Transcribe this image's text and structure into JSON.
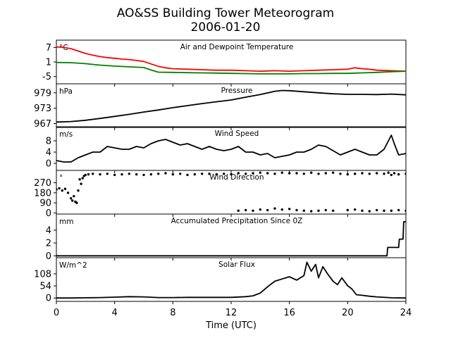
{
  "title": "AO&SS Building Tower Meteorogram",
  "subtitle": "2006-01-20",
  "chart_data": {
    "type": "line",
    "xlabel": "Time (UTC)",
    "xlim": [
      0,
      24
    ],
    "xticks": [
      0,
      4,
      8,
      12,
      16,
      20,
      24
    ],
    "panels": [
      {
        "key": "temp",
        "title": "Air and Dewpoint Temperature",
        "unit": "°C",
        "ylim": [
          -8,
          10
        ],
        "yticks": [
          7,
          1,
          -5
        ],
        "series": [
          {
            "name": "",
            "color": "#ff0000",
            "style": "line",
            "x": [
              0,
              0.5,
              1,
              1.5,
              2,
              2.5,
              3,
              3.5,
              4,
              4.5,
              5,
              5.5,
              6,
              6.5,
              7,
              7.5,
              8,
              9,
              10,
              11,
              12,
              13,
              14,
              15,
              16,
              17,
              18,
              19,
              20,
              20.5,
              21,
              21.5,
              22,
              23,
              24
            ],
            "y": [
              7.2,
              7.0,
              6.5,
              5.5,
              4.5,
              3.8,
              3.2,
              2.8,
              2.5,
              2.2,
              2.0,
              1.6,
              1.2,
              0.2,
              -0.8,
              -1.4,
              -1.8,
              -2.0,
              -2.2,
              -2.4,
              -2.4,
              -2.6,
              -2.8,
              -2.6,
              -2.8,
              -2.6,
              -2.4,
              -2.2,
              -2.0,
              -1.4,
              -1.8,
              -2.0,
              -2.4,
              -2.6,
              -2.8
            ]
          },
          {
            "name": "",
            "color": "#008000",
            "style": "line",
            "x": [
              0,
              1,
              2,
              3,
              4,
              5,
              6,
              6.5,
              7,
              8,
              9,
              10,
              11,
              12,
              13,
              14,
              15,
              16,
              17,
              18,
              19,
              20,
              21,
              22,
              23,
              24
            ],
            "y": [
              0.8,
              0.7,
              0.3,
              -0.3,
              -0.7,
              -1.0,
              -1.3,
              -2.3,
              -3.2,
              -3.3,
              -3.4,
              -3.5,
              -3.6,
              -3.7,
              -3.8,
              -3.9,
              -3.9,
              -3.9,
              -3.8,
              -3.8,
              -3.7,
              -3.7,
              -3.5,
              -3.3,
              -3.0,
              -2.8
            ]
          }
        ]
      },
      {
        "key": "pressure",
        "title": "Pressure",
        "unit": "hPa",
        "ylim": [
          965.5,
          982.5
        ],
        "yticks": [
          979,
          973,
          967
        ],
        "series": [
          {
            "name": "",
            "color": "#000000",
            "style": "line",
            "x": [
              0,
              1,
              2,
              3,
              4,
              5,
              6,
              7,
              8,
              9,
              10,
              11,
              12,
              13,
              14,
              15,
              15.5,
              16,
              17,
              18,
              19,
              20,
              21,
              22,
              23,
              24
            ],
            "y": [
              967.6,
              967.8,
              968.3,
              969.0,
              969.8,
              970.6,
              971.5,
              972.3,
              973.2,
              974.0,
              974.8,
              975.5,
              976.2,
              977.3,
              978.3,
              979.6,
              979.9,
              979.8,
              979.4,
              979.0,
              978.6,
              978.4,
              978.4,
              978.3,
              978.5,
              978.2
            ]
          }
        ]
      },
      {
        "key": "wind_speed",
        "title": "Wind Speed",
        "unit": "m/s",
        "ylim": [
          -2.5,
          13
        ],
        "yticks": [
          8,
          4,
          0
        ],
        "series": [
          {
            "name": "",
            "color": "#000000",
            "style": "line",
            "x": [
              0,
              0.5,
              1,
              1.5,
              2,
              2.5,
              3,
              3.5,
              4,
              4.5,
              5,
              5.5,
              6,
              6.5,
              7,
              7.5,
              8,
              8.5,
              9,
              9.5,
              10,
              10.5,
              11,
              11.5,
              12,
              12.5,
              13,
              13.5,
              14,
              14.5,
              15,
              15.5,
              16,
              16.5,
              17,
              17.5,
              18,
              18.5,
              19,
              19.5,
              20,
              20.5,
              21,
              21.5,
              22,
              22.5,
              23,
              23.2,
              23.5,
              24
            ],
            "y": [
              1,
              0.5,
              0.5,
              2,
              3,
              4,
              4,
              6,
              5.5,
              5,
              5,
              6,
              5.5,
              7,
              8,
              8.5,
              7.5,
              6.5,
              7,
              6,
              5,
              6,
              5,
              4.5,
              5,
              6,
              4,
              4,
              3,
              3.5,
              2,
              2.5,
              3,
              4,
              4,
              5,
              6.5,
              6,
              4.5,
              3,
              4,
              5,
              4,
              3,
              3,
              5,
              10,
              7,
              3,
              3.5
            ]
          }
        ]
      },
      {
        "key": "wind_dir",
        "title": "Wind Direction",
        "unit": "°",
        "ylim": [
          -10,
          380
        ],
        "yticks": [
          270,
          180,
          90,
          0
        ],
        "series": [
          {
            "name": "",
            "color": "#000000",
            "style": "dots",
            "x": [
              0,
              0.2,
              0.4,
              0.6,
              0.8,
              1.0,
              1.1,
              1.2,
              1.3,
              1.4,
              1.5,
              1.6,
              1.7,
              1.8,
              1.9,
              2.0,
              2.2,
              2.5,
              3,
              3.5,
              4,
              4.5,
              5,
              5.5,
              6,
              6.5,
              7,
              7.5,
              8,
              8.5,
              9,
              9.5,
              10,
              10.5,
              11,
              11.5,
              12,
              12.5,
              13,
              13.5,
              14,
              14.5,
              15,
              15.5,
              16,
              16.5,
              17,
              17.5,
              18,
              18.5,
              19,
              19.5,
              20,
              20.5,
              21,
              21.5,
              22,
              22.5,
              23,
              23.5,
              24,
              12.5,
              13,
              13.5,
              14,
              14.5,
              15,
              15.5,
              16,
              16.5,
              17,
              17.5,
              18,
              18.5,
              19,
              20,
              20.5,
              21,
              21.5,
              22,
              22.5,
              23,
              23.5,
              24,
              20.5,
              22.8,
              23.2
            ],
            "y": [
              210,
              220,
              200,
              215,
              180,
              130,
              110,
              150,
              100,
              90,
              200,
              300,
              260,
              310,
              330,
              340,
              345,
              350,
              345,
              350,
              340,
              345,
              350,
              345,
              340,
              345,
              350,
              355,
              345,
              350,
              340,
              345,
              350,
              350,
              345,
              350,
              345,
              355,
              350,
              355,
              360,
              355,
              350,
              360,
              355,
              355,
              350,
              360,
              350,
              355,
              360,
              350,
              345,
              350,
              355,
              350,
              355,
              350,
              340,
              345,
              350,
              20,
              25,
              20,
              30,
              25,
              40,
              30,
              35,
              25,
              20,
              15,
              20,
              25,
              20,
              25,
              30,
              20,
              15,
              25,
              20,
              20,
              25,
              20,
              350,
              360,
              355
            ]
          }
        ]
      },
      {
        "key": "precip",
        "title": "Accumulated Precipitation Since 0Z",
        "unit": "mm",
        "ylim": [
          -0.3,
          6.5
        ],
        "yticks": [
          4,
          2,
          0
        ],
        "series": [
          {
            "name": "",
            "color": "#000000",
            "style": "line",
            "x": [
              0,
              22.7,
              22.75,
              23.5,
              23.55,
              23.8,
              23.85,
              24
            ],
            "y": [
              0,
              0,
              1.3,
              1.3,
              2.6,
              2.6,
              5.3,
              5.3
            ]
          }
        ]
      },
      {
        "key": "solar",
        "title": "Solar Flux",
        "unit": "W/m^2",
        "ylim": [
          -15,
          180
        ],
        "yticks": [
          108,
          54,
          0
        ],
        "series": [
          {
            "name": "",
            "color": "#000000",
            "style": "line",
            "x": [
              0,
              1,
              2,
              3,
              4,
              5,
              6,
              7,
              8,
              9,
              10,
              11,
              12,
              13,
              13.5,
              14,
              14.5,
              15,
              15.5,
              16,
              16.5,
              17,
              17.2,
              17.5,
              17.8,
              18,
              18.3,
              18.6,
              19,
              19.3,
              19.6,
              20,
              20.3,
              20.6,
              21,
              21.5,
              22,
              23,
              24
            ],
            "y": [
              0,
              0,
              1,
              2,
              4,
              6,
              5,
              2,
              2,
              3,
              3,
              3,
              3,
              6,
              10,
              22,
              50,
              75,
              85,
              95,
              80,
              100,
              160,
              120,
              150,
              90,
              140,
              110,
              75,
              60,
              90,
              55,
              40,
              15,
              12,
              8,
              5,
              1,
              0
            ]
          }
        ]
      }
    ]
  }
}
